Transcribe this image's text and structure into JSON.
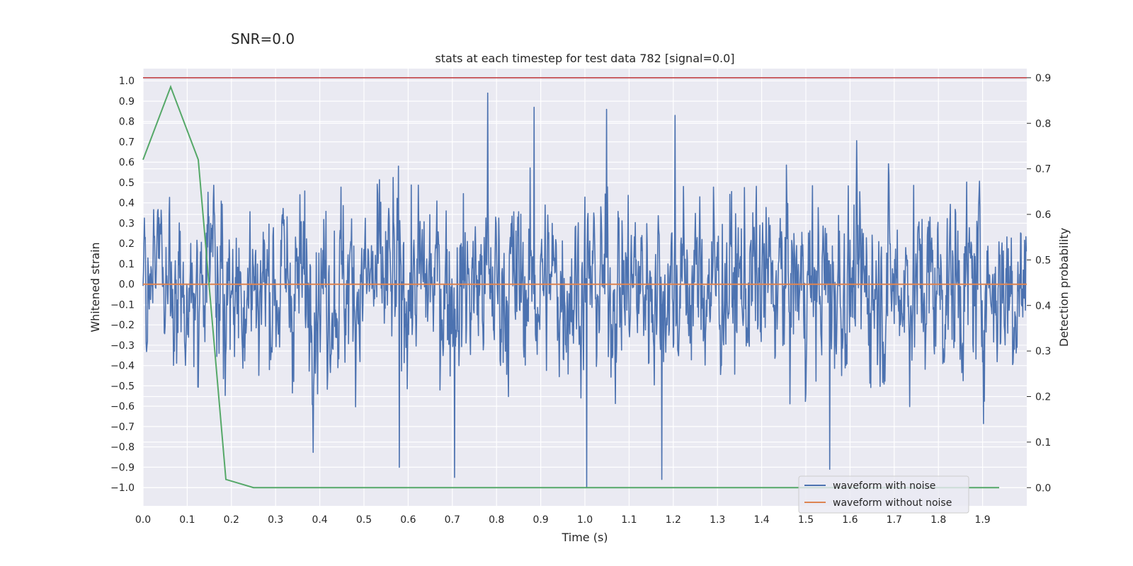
{
  "chart_data": {
    "type": "line",
    "suptitle": "SNR=0.0",
    "title": "stats at each timestep for test data 782 [signal=0.0]",
    "xlabel": "Time (s)",
    "ylabel_left": "Whitened strain",
    "ylabel_right": "Detection probability",
    "xlim": [
      0.0,
      2.0
    ],
    "ylim_left": [
      -1.09,
      1.06
    ],
    "ylim_right": [
      -0.04,
      0.92
    ],
    "x_ticks": [
      "0.0",
      "0.1",
      "0.2",
      "0.3",
      "0.4",
      "0.5",
      "0.6",
      "0.7",
      "0.8",
      "0.9",
      "1.0",
      "1.1",
      "1.2",
      "1.3",
      "1.4",
      "1.5",
      "1.6",
      "1.7",
      "1.8",
      "1.9"
    ],
    "y_left_ticks": [
      "1.0",
      "0.9",
      "0.8",
      "0.7",
      "0.6",
      "0.5",
      "0.4",
      "0.3",
      "0.2",
      "0.1",
      "0.0",
      "-0.1",
      "-0.2",
      "-0.3",
      "-0.4",
      "-0.5",
      "-0.6",
      "-0.7",
      "-0.8",
      "-0.9",
      "-1.0"
    ],
    "y_right_ticks": [
      "0.9",
      "0.8",
      "0.7",
      "0.6",
      "0.5",
      "0.4",
      "0.3",
      "0.2",
      "0.1",
      "0.0"
    ],
    "noisy_waveform": {
      "name": "waveform with noise",
      "color": "#4c72b0",
      "samples": 2000,
      "x_range": [
        0.0,
        2.0
      ],
      "approx_range": [
        -1.0,
        0.94
      ],
      "peaks": [
        [
          0.78,
          0.94
        ],
        [
          1.005,
          -1.0
        ],
        [
          0.58,
          -0.9
        ],
        [
          1.175,
          -0.96
        ],
        [
          0.705,
          -0.95
        ],
        [
          1.555,
          -0.91
        ],
        [
          0.885,
          0.87
        ],
        [
          1.05,
          0.86
        ],
        [
          1.205,
          0.83
        ]
      ]
    },
    "clean_waveform": {
      "name": "waveform without noise",
      "color": "#dd8452",
      "value": 0.0
    },
    "detection_probability": {
      "name": "detection probability",
      "color": "#55a868",
      "x": [
        0.0,
        0.0625,
        0.125,
        0.1875,
        0.25,
        0.3125,
        0.375,
        0.5,
        0.75,
        1.0,
        1.25,
        1.5,
        1.75,
        1.9375
      ],
      "y": [
        0.72,
        0.88,
        0.72,
        0.018,
        0.0,
        0.0,
        0.0,
        0.0,
        0.0,
        0.0,
        0.0,
        0.0,
        0.0,
        0.0
      ]
    },
    "threshold": {
      "value": 0.9,
      "color": "#c44e52"
    },
    "legend": {
      "position": "lower-right",
      "entries": [
        {
          "label": "waveform with noise",
          "color": "#4c72b0"
        },
        {
          "label": "waveform without noise",
          "color": "#dd8452"
        }
      ]
    }
  }
}
